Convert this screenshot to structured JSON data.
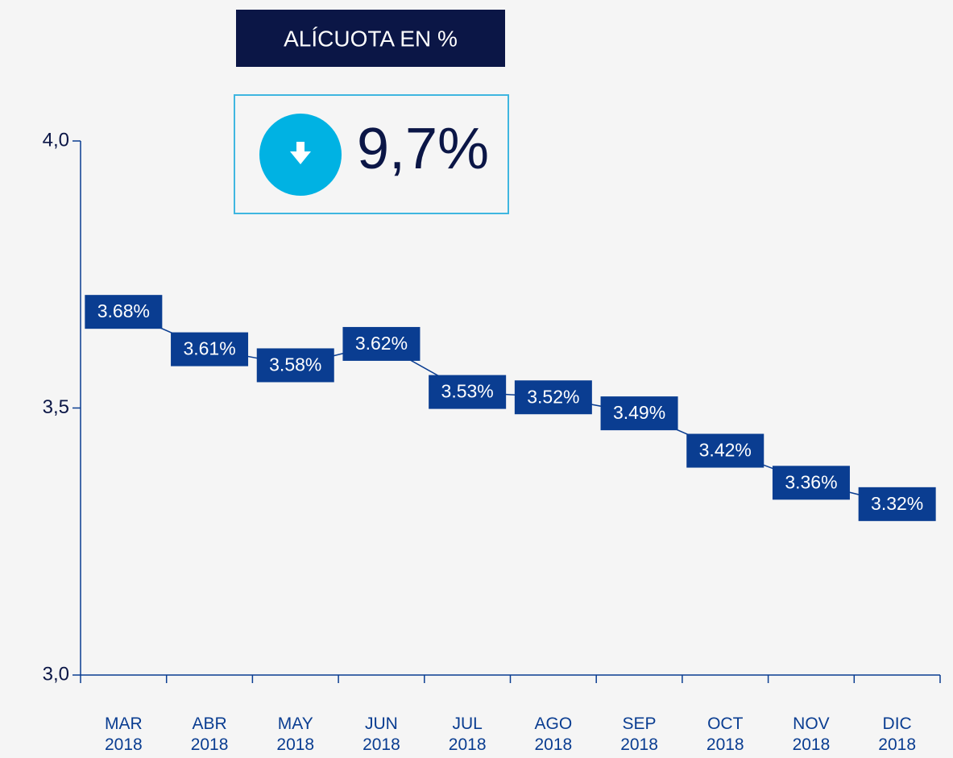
{
  "chart_data": {
    "type": "line",
    "title": "ALÍCUOTA EN %",
    "annotation": "9,7%",
    "categories": [
      "MAR\n2018",
      "ABR\n2018",
      "MAY\n2018",
      "JUN\n2018",
      "JUL\n2018",
      "AGO\n2018",
      "SEP\n2018",
      "OCT\n2018",
      "NOV\n2018",
      "DIC\n2018"
    ],
    "values": [
      3.68,
      3.61,
      3.58,
      3.62,
      3.53,
      3.52,
      3.49,
      3.42,
      3.36,
      3.32
    ],
    "value_labels": [
      "3.68%",
      "3.61%",
      "3.58%",
      "3.62%",
      "3.53%",
      "3.52%",
      "3.49%",
      "3.42%",
      "3.36%",
      "3.32%"
    ],
    "color": "#0a3d91",
    "ylim": [
      3.0,
      4.0
    ],
    "yticks": [
      {
        "value": 3.0,
        "label": "3,0"
      },
      {
        "value": 3.5,
        "label": "3,5"
      },
      {
        "value": 4.0,
        "label": "4,0"
      }
    ]
  }
}
